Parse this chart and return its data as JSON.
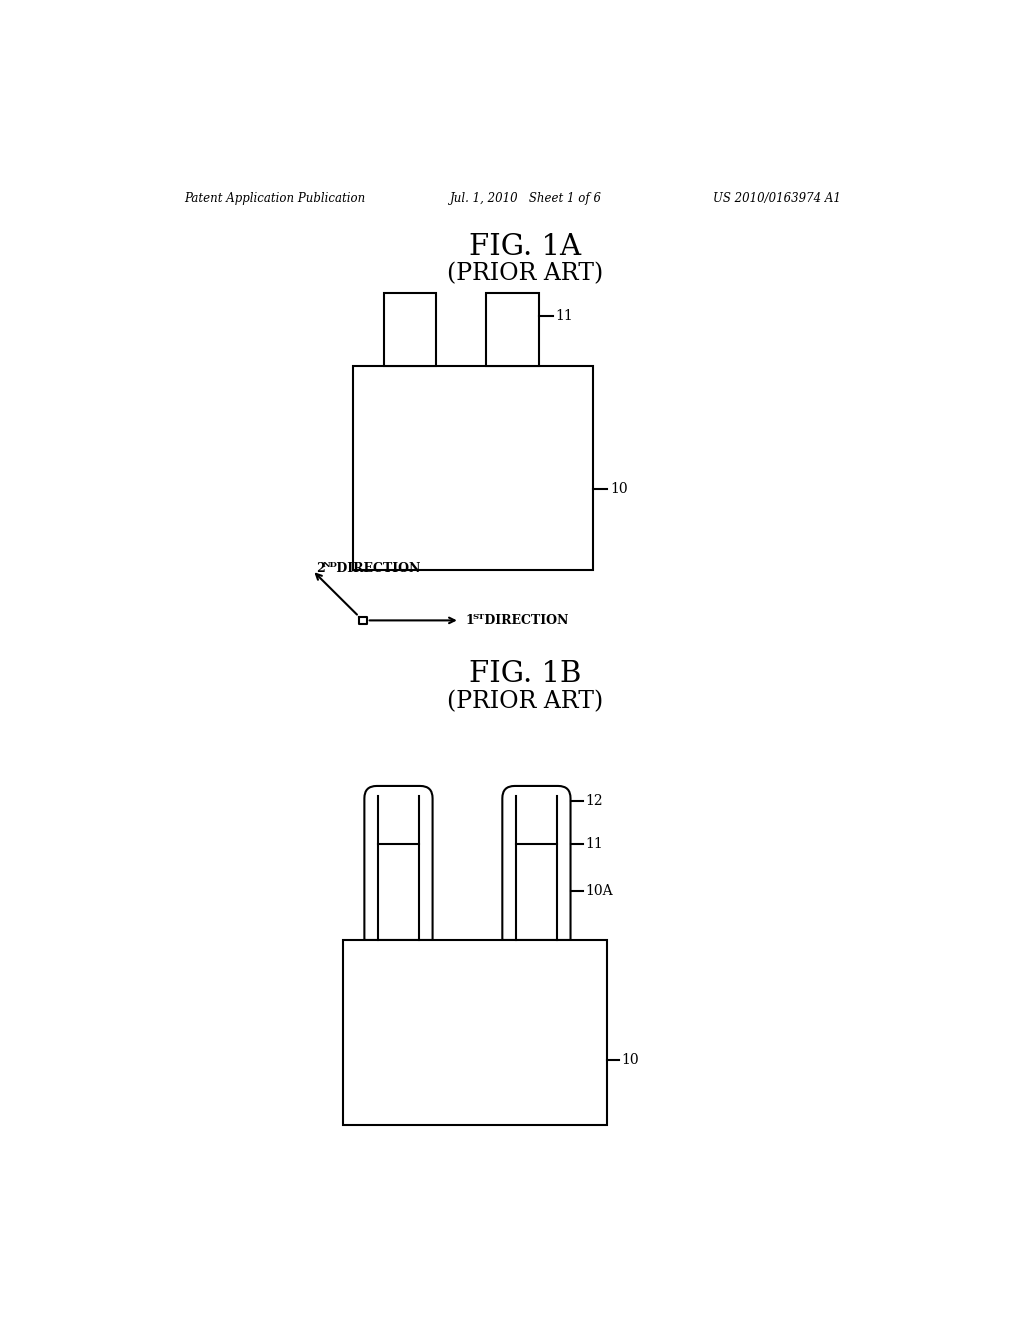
{
  "bg_color": "#ffffff",
  "line_color": "#000000",
  "header_left": "Patent Application Publication",
  "header_center": "Jul. 1, 2010   Sheet 1 of 6",
  "header_right": "US 2010/0163974 A1",
  "fig1a_title": "FIG. 1A",
  "fig1a_subtitle": "(PRIOR ART)",
  "fig1b_title": "FIG. 1B",
  "fig1b_subtitle": "(PRIOR ART)",
  "label_10": "10",
  "label_11": "11",
  "label_10a": "10A",
  "label_12": "12"
}
